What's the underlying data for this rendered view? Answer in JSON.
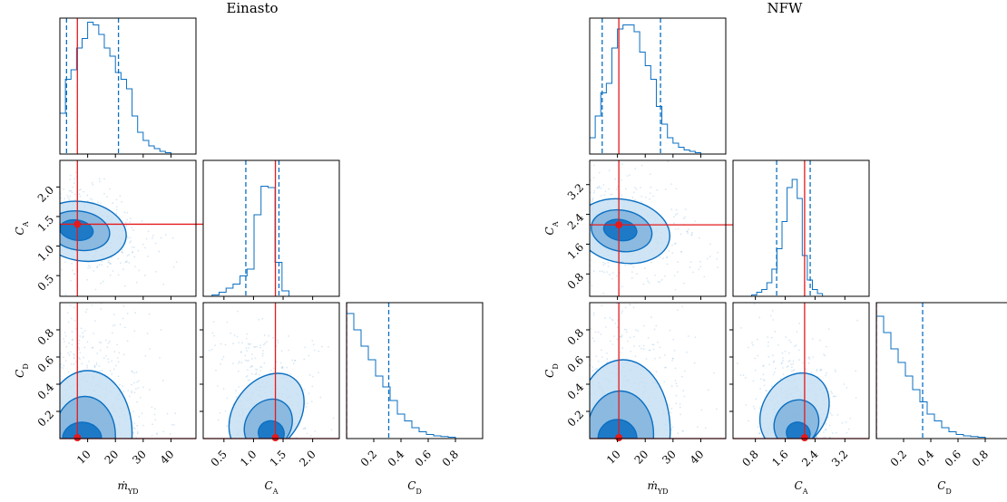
{
  "colors": {
    "main": "#0a6fc2",
    "truth": "#e41a1c",
    "c3": "#c7dff2",
    "c2": "#7fb2dc",
    "c1": "#0a6fc2",
    "pts": "#8fbde3"
  },
  "chart_data": [
    {
      "type": "corner",
      "title": "Einasto",
      "params": [
        {
          "key": "m",
          "label": "ṁ",
          "sub": "YD",
          "lim": [
            0,
            49
          ],
          "ticks": [
            10,
            20,
            30,
            40
          ],
          "truth": 6.3,
          "q": [
            2.4,
            21.1
          ]
        },
        {
          "key": "ca",
          "label": "C",
          "sub": "A",
          "lim": [
            0.15,
            2.45
          ],
          "ticks": [
            0.5,
            1.0,
            1.5,
            2.0
          ],
          "ticklabels": [
            "0.5",
            "1.0",
            "1.5",
            "2.0"
          ],
          "truth": 1.37,
          "q": [
            0.87,
            1.43
          ]
        },
        {
          "key": "cd",
          "label": "C",
          "sub": "D",
          "lim": [
            0,
            1
          ],
          "ticks": [
            0.2,
            0.4,
            0.6,
            0.8
          ],
          "ticklabels": [
            "0.2",
            "0.4",
            "0.6",
            "0.8"
          ],
          "truth": 0.0,
          "q": [
            0.0,
            0.31
          ]
        }
      ],
      "hist": {
        "m": [
          0.3,
          0.55,
          0.62,
          0.78,
          0.85,
          0.97,
          0.95,
          0.88,
          0.78,
          0.72,
          0.6,
          0.55,
          0.48,
          0.28,
          0.16,
          0.1,
          0.06,
          0.04,
          0.02,
          0.01
        ],
        "ca": [
          0.01,
          0.03,
          0.06,
          0.09,
          0.15,
          0.2,
          0.6,
          0.81,
          0.8,
          0.25,
          0.04
        ],
        "cd": [
          0.92,
          0.8,
          0.68,
          0.58,
          0.46,
          0.38,
          0.28,
          0.18,
          0.13,
          0.08,
          0.05,
          0.03,
          0.02,
          0.015,
          0.01
        ]
      },
      "hist_ranges": {
        "m": [
          0,
          40
        ],
        "ca": [
          0.3,
          1.6
        ],
        "cd": [
          0,
          0.8
        ]
      },
      "contours": {
        "ca_m": [
          {
            "cx": 8,
            "cy": 1.25,
            "rx": 16,
            "ry": 0.5,
            "rot": -0.25
          },
          {
            "cx": 7,
            "cy": 1.26,
            "rx": 11,
            "ry": 0.33,
            "rot": -0.25
          },
          {
            "cx": 6,
            "cy": 1.27,
            "rx": 6,
            "ry": 0.17,
            "rot": -0.25
          }
        ],
        "cd_m": [
          {
            "cx": 10,
            "cy": 0.04,
            "rx": 16,
            "ry": 0.46,
            "rot": 0
          },
          {
            "cx": 9,
            "cy": 0.02,
            "rx": 11,
            "ry": 0.29,
            "rot": 0
          },
          {
            "cx": 8,
            "cy": 0.0,
            "rx": 7,
            "ry": 0.12,
            "rot": 0
          }
        ],
        "cd_ca": [
          {
            "cx": 1.22,
            "cy": 0.18,
            "rx": 0.55,
            "ry": 0.33,
            "rot": -0.55
          },
          {
            "cx": 1.25,
            "cy": 0.1,
            "rx": 0.38,
            "ry": 0.2,
            "rot": -0.55
          },
          {
            "cx": 1.3,
            "cy": 0.04,
            "rx": 0.22,
            "ry": 0.09,
            "rot": -0.45
          }
        ]
      }
    },
    {
      "type": "corner",
      "title": "NFW",
      "params": [
        {
          "key": "m",
          "label": "ṁ",
          "sub": "YD",
          "lim": [
            0,
            49
          ],
          "ticks": [
            10,
            20,
            30,
            40
          ],
          "truth": 10.5,
          "q": [
            4.5,
            25.5
          ]
        },
        {
          "key": "ca",
          "label": "C",
          "sub": "A",
          "lim": [
            0.2,
            3.85
          ],
          "ticks": [
            0.8,
            1.6,
            2.4,
            3.2
          ],
          "ticklabels": [
            "0.8",
            "1.6",
            "2.4",
            "3.2"
          ],
          "truth": 2.12,
          "q": [
            1.37,
            2.27
          ]
        },
        {
          "key": "cd",
          "label": "C",
          "sub": "D",
          "lim": [
            0,
            1
          ],
          "ticks": [
            0.2,
            0.4,
            0.6,
            0.8
          ],
          "ticklabels": [
            "0.2",
            "0.4",
            "0.6",
            "0.8"
          ],
          "truth": 0.0,
          "q": [
            0.0,
            0.34
          ]
        }
      ],
      "hist": {
        "m": [
          0.12,
          0.28,
          0.45,
          0.52,
          0.78,
          0.92,
          0.95,
          0.95,
          0.9,
          0.75,
          0.65,
          0.55,
          0.35,
          0.22,
          0.12,
          0.08,
          0.05,
          0.03,
          0.02,
          0.01
        ],
        "ca": [
          0.01,
          0.03,
          0.05,
          0.1,
          0.2,
          0.35,
          0.55,
          0.8,
          0.86,
          0.72,
          0.3,
          0.12,
          0.05,
          0.02
        ],
        "cd": [
          0.9,
          0.78,
          0.66,
          0.56,
          0.46,
          0.36,
          0.27,
          0.18,
          0.13,
          0.08,
          0.05,
          0.03,
          0.02,
          0.015,
          0.01
        ]
      },
      "hist_ranges": {
        "m": [
          0,
          40
        ],
        "ca": [
          0.7,
          2.6
        ],
        "cd": [
          0,
          0.8
        ]
      },
      "contours": {
        "ca_m": [
          {
            "cx": 12,
            "cy": 1.95,
            "rx": 17,
            "ry": 0.85,
            "rot": -0.28
          },
          {
            "cx": 11.5,
            "cy": 1.96,
            "rx": 11,
            "ry": 0.55,
            "rot": -0.28
          },
          {
            "cx": 11,
            "cy": 1.98,
            "rx": 6,
            "ry": 0.28,
            "rot": -0.28
          }
        ],
        "cd_m": [
          {
            "cx": 12,
            "cy": 0.06,
            "rx": 17,
            "ry": 0.52,
            "rot": 0
          },
          {
            "cx": 11,
            "cy": 0.03,
            "rx": 12,
            "ry": 0.32,
            "rot": 0
          },
          {
            "cx": 10,
            "cy": 0.0,
            "rx": 7,
            "ry": 0.14,
            "rot": 0
          }
        ],
        "cd_ca": [
          {
            "cx": 1.85,
            "cy": 0.2,
            "rx": 0.85,
            "ry": 0.3,
            "rot": -0.5
          },
          {
            "cx": 1.9,
            "cy": 0.11,
            "rx": 0.58,
            "ry": 0.18,
            "rot": -0.5
          },
          {
            "cx": 1.95,
            "cy": 0.04,
            "rx": 0.32,
            "ry": 0.08,
            "rot": -0.4
          }
        ]
      }
    }
  ]
}
